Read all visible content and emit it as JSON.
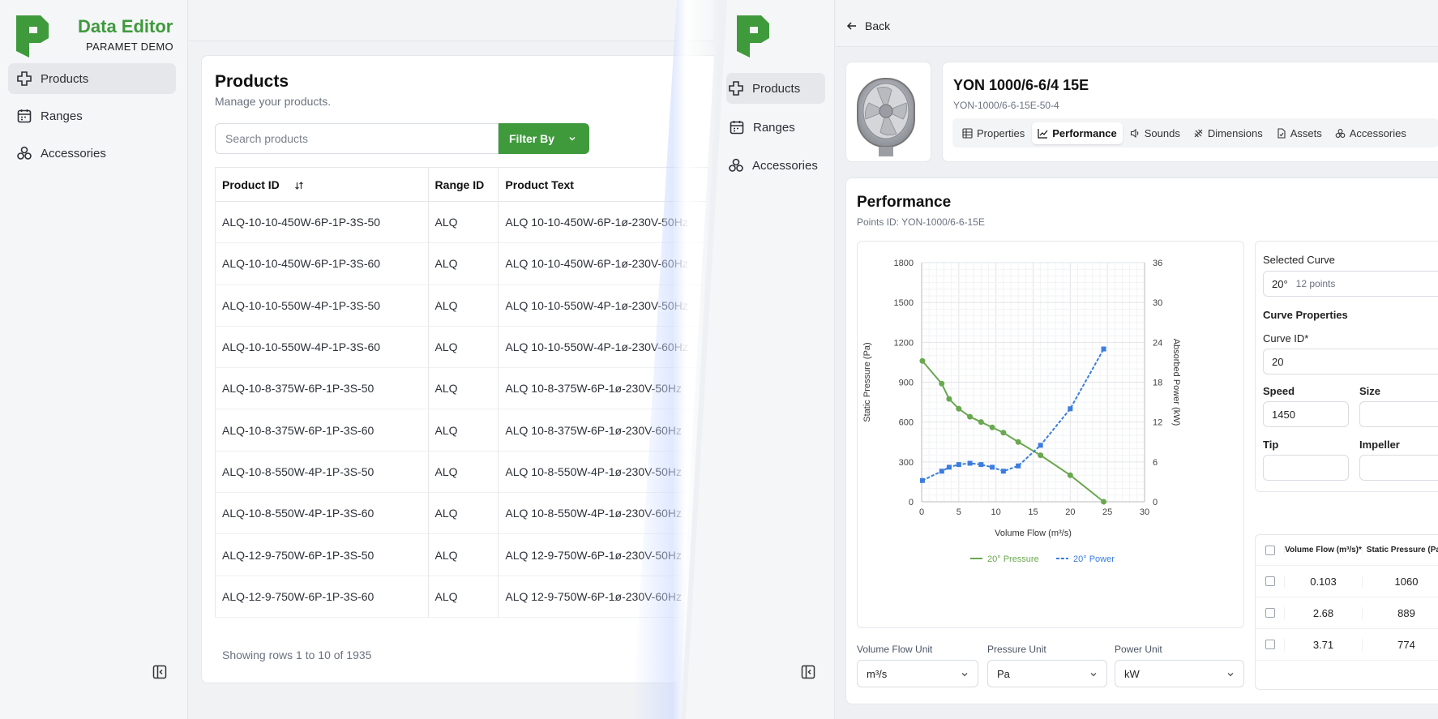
{
  "left": {
    "brand": {
      "title": "Data Editor",
      "subtitle": "PARAMET DEMO"
    },
    "nav": [
      {
        "label": "Products",
        "icon": "products-icon",
        "active": true
      },
      {
        "label": "Ranges",
        "icon": "calendar-icon",
        "active": false
      },
      {
        "label": "Accessories",
        "icon": "accessories-icon",
        "active": false
      }
    ],
    "page": {
      "title": "Products",
      "subtitle": "Manage your products.",
      "search_placeholder": "Search products",
      "filter_label": "Filter By",
      "columns": [
        "Product ID",
        "Range ID",
        "Product Text"
      ],
      "rows": [
        [
          "ALQ-10-10-450W-6P-1P-3S-50",
          "ALQ",
          "ALQ 10-10-450W-6P-1ø-230V-50Hz"
        ],
        [
          "ALQ-10-10-450W-6P-1P-3S-60",
          "ALQ",
          "ALQ 10-10-450W-6P-1ø-230V-60Hz"
        ],
        [
          "ALQ-10-10-550W-4P-1P-3S-50",
          "ALQ",
          "ALQ 10-10-550W-4P-1ø-230V-50Hz"
        ],
        [
          "ALQ-10-10-550W-4P-1P-3S-60",
          "ALQ",
          "ALQ 10-10-550W-4P-1ø-230V-60Hz"
        ],
        [
          "ALQ-10-8-375W-6P-1P-3S-50",
          "ALQ",
          "ALQ 10-8-375W-6P-1ø-230V-50Hz"
        ],
        [
          "ALQ-10-8-375W-6P-1P-3S-60",
          "ALQ",
          "ALQ 10-8-375W-6P-1ø-230V-60Hz"
        ],
        [
          "ALQ-10-8-550W-4P-1P-3S-50",
          "ALQ",
          "ALQ 10-8-550W-4P-1ø-230V-50Hz"
        ],
        [
          "ALQ-10-8-550W-4P-1P-3S-60",
          "ALQ",
          "ALQ 10-8-550W-4P-1ø-230V-60Hz"
        ],
        [
          "ALQ-12-9-750W-6P-1P-3S-50",
          "ALQ",
          "ALQ 12-9-750W-6P-1ø-230V-50Hz"
        ],
        [
          "ALQ-12-9-750W-6P-1P-3S-60",
          "ALQ",
          "ALQ 12-9-750W-6P-1ø-230V-60Hz"
        ]
      ],
      "showing": "Showing rows 1 to 10 of 1935"
    }
  },
  "right": {
    "nav": [
      {
        "label": "Products",
        "active": true
      },
      {
        "label": "Ranges",
        "active": false
      },
      {
        "label": "Accessories",
        "active": false
      }
    ],
    "back_label": "Back",
    "product": {
      "title": "YON 1000/6-6/4 15E",
      "subtitle": "YON-1000/6-6-15E-50-4"
    },
    "tabs": [
      {
        "label": "Properties",
        "icon": "table-icon",
        "active": false
      },
      {
        "label": "Performance",
        "icon": "chart-line-icon",
        "active": true
      },
      {
        "label": "Sounds",
        "icon": "speaker-icon",
        "active": false
      },
      {
        "label": "Dimensions",
        "icon": "ruler-icon",
        "active": false
      },
      {
        "label": "Assets",
        "icon": "file-icon",
        "active": false
      },
      {
        "label": "Accessories",
        "icon": "accessories-icon",
        "active": false
      }
    ],
    "performance": {
      "title": "Performance",
      "subtitle": "Points ID: YON-1000/6-6-15E",
      "units": [
        {
          "label": "Volume Flow Unit",
          "value": "m³/s"
        },
        {
          "label": "Pressure Unit",
          "value": "Pa"
        },
        {
          "label": "Power Unit",
          "value": "kW"
        }
      ],
      "selected_curve_label": "Selected Curve",
      "selected_curve_value": "20°",
      "selected_curve_points": "12 points",
      "curve_properties_label": "Curve Properties",
      "fields": {
        "curve_id": {
          "label": "Curve ID*",
          "value": "20"
        },
        "speed": {
          "label": "Speed",
          "value": "1450"
        },
        "size": {
          "label": "Size",
          "value": ""
        },
        "tip": {
          "label": "Tip",
          "value": ""
        },
        "impeller": {
          "label": "Impeller",
          "value": ""
        }
      },
      "table": {
        "columns": [
          "Volume Flow (m³/s)*",
          "Static Pressure (Pa)*"
        ],
        "rows": [
          [
            "0.103",
            "1060"
          ],
          [
            "2.68",
            "889"
          ],
          [
            "3.71",
            "774"
          ]
        ]
      }
    },
    "colors": {
      "pressure": "#6aa84f",
      "power": "#3b7ddd",
      "accent": "#3f9a3c"
    }
  },
  "chart_data": {
    "type": "line",
    "title": "",
    "xlabel": "Volume Flow (m³/s)",
    "ylabel": "Static Pressure (Pa)",
    "y2label": "Absorbed Power (kW)",
    "xlim": [
      0,
      30
    ],
    "ylim": [
      0,
      1800
    ],
    "y2lim": [
      0,
      36
    ],
    "xticks": [
      0,
      5,
      10,
      15,
      20,
      25,
      30
    ],
    "yticks": [
      0,
      300,
      600,
      900,
      1200,
      1500,
      1800
    ],
    "y2ticks": [
      0,
      6,
      12,
      18,
      24,
      30,
      36
    ],
    "grid": true,
    "legend_position": "bottom",
    "series": [
      {
        "name": "20° Pressure",
        "axis": "left",
        "x": [
          0.1,
          2.7,
          3.7,
          5,
          6.5,
          8,
          9.5,
          11,
          13,
          16,
          20,
          24.5
        ],
        "y": [
          1060,
          889,
          774,
          700,
          640,
          600,
          560,
          520,
          450,
          350,
          200,
          0
        ]
      },
      {
        "name": "20° Power",
        "axis": "right",
        "x": [
          0.1,
          2.7,
          3.7,
          5,
          6.5,
          8,
          9.5,
          11,
          13,
          16,
          20,
          24.5
        ],
        "y": [
          3.2,
          4.6,
          5.2,
          5.6,
          5.8,
          5.6,
          5.2,
          4.6,
          5.4,
          8.5,
          14,
          23
        ]
      }
    ]
  }
}
